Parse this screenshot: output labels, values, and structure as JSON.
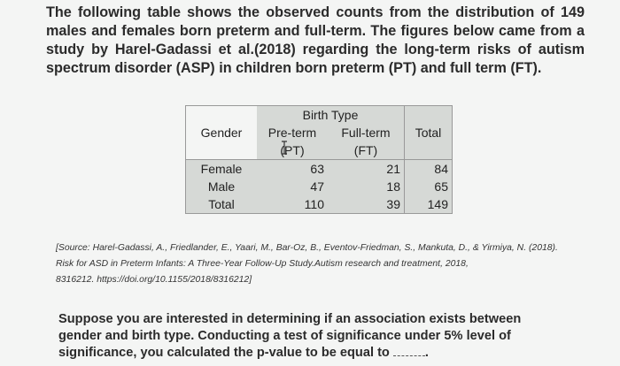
{
  "intro": "The following table shows the observed counts from the distribution of 149 males and females born preterm and full-term. The figures below came from a study by Harel-Gadassi et al.(2018) regarding the long-term risks of autism spectrum disorder (ASP) in children born preterm (PT) and full term (FT).",
  "table": {
    "birth_type_header": "Birth Type",
    "gender_header": "Gender",
    "col_preterm": "Pre-term",
    "col_preterm_abbr": "(PT)",
    "col_fullterm": "Full-term",
    "col_fullterm_abbr": "(FT)",
    "col_total": "Total",
    "rows": [
      {
        "label": "Female",
        "pt": "63",
        "ft": "21",
        "total": "84"
      },
      {
        "label": "Male",
        "pt": "47",
        "ft": "18",
        "total": "65"
      },
      {
        "label": "Total",
        "pt": "110",
        "ft": "39",
        "total": "149"
      }
    ]
  },
  "source_lines": [
    "[Source: Harel-Gadassi, A., Friedlander, E., Yaari, M., Bar-Oz, B., Eventov-Friedman, S., Mankuta, D., & Yirmiya, N. (2018).",
    "Risk for ASD in Preterm Infants: A Three-Year Follow-Up Study.Autism research and treatment, 2018,",
    "8316212. https://doi.org/10.1155/2018/8316212]"
  ],
  "question": "Suppose you are interested in determining if an association exists between gender and birth type. Conducting a test of significance under 5% level of significance, you calculated the p-value to be equal to",
  "blank_suffix": "."
}
